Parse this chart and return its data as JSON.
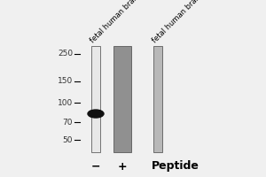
{
  "background_color": "#f0f0f0",
  "ladder_marks": [
    250,
    150,
    100,
    70,
    50
  ],
  "lane_colors": [
    "#b0b0b0",
    "#808080",
    "#b0b0b0"
  ],
  "band_color": "#111111",
  "label1": "fetal human brain",
  "label2": "fetal human brain",
  "peptide_label": "Peptide",
  "marker_fontsize": 6.5,
  "label_fontsize": 6,
  "peptide_fontsize": 9,
  "sign_fontsize": 9,
  "ymin": 40,
  "ymax": 290
}
